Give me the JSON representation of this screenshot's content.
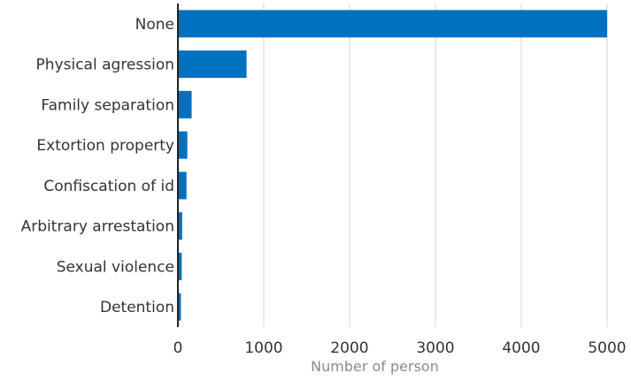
{
  "chart_data": {
    "type": "bar",
    "orientation": "horizontal",
    "categories": [
      "None",
      "Physical agression",
      "Family separation",
      "Extortion property",
      "Confiscation of id",
      "Arbitrary arrestation",
      "Sexual violence",
      "Detention"
    ],
    "values": [
      5000,
      800,
      160,
      110,
      100,
      50,
      45,
      35
    ],
    "xlabel": "Number of person",
    "ylabel": "",
    "xlim": [
      0,
      5000
    ],
    "x_ticks": [
      "0",
      "1000",
      "2000",
      "3000",
      "4000",
      "5000"
    ],
    "grid": "vertical",
    "legend": "none",
    "bar_color": "#0070c0"
  }
}
